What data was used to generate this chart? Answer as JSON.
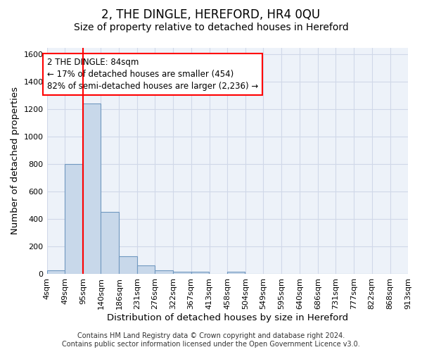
{
  "title": "2, THE DINGLE, HEREFORD, HR4 0QU",
  "subtitle": "Size of property relative to detached houses in Hereford",
  "xlabel": "Distribution of detached houses by size in Hereford",
  "ylabel": "Number of detached properties",
  "bar_left_edges": [
    4,
    49,
    95,
    140,
    186,
    231,
    276,
    322,
    367,
    413,
    458,
    504,
    549,
    595,
    640,
    686,
    731,
    777,
    822,
    868
  ],
  "bar_heights": [
    25,
    800,
    1240,
    450,
    130,
    60,
    25,
    15,
    15,
    0,
    15,
    0,
    0,
    0,
    0,
    0,
    0,
    0,
    0,
    0
  ],
  "bin_width": 45,
  "bar_color": "#c8d8ea",
  "bar_edge_color": "#7098c0",
  "red_line_x": 95,
  "ylim": [
    0,
    1650
  ],
  "yticks": [
    0,
    200,
    400,
    600,
    800,
    1000,
    1200,
    1400,
    1600
  ],
  "xtick_labels": [
    "4sqm",
    "49sqm",
    "95sqm",
    "140sqm",
    "186sqm",
    "231sqm",
    "276sqm",
    "322sqm",
    "367sqm",
    "413sqm",
    "458sqm",
    "504sqm",
    "549sqm",
    "595sqm",
    "640sqm",
    "686sqm",
    "731sqm",
    "777sqm",
    "822sqm",
    "868sqm",
    "913sqm"
  ],
  "xtick_positions": [
    4,
    49,
    95,
    140,
    186,
    231,
    276,
    322,
    367,
    413,
    458,
    504,
    549,
    595,
    640,
    686,
    731,
    777,
    822,
    868,
    913
  ],
  "annotation_text": "2 THE DINGLE: 84sqm\n← 17% of detached houses are smaller (454)\n82% of semi-detached houses are larger (2,236) →",
  "footer_line1": "Contains HM Land Registry data © Crown copyright and database right 2024.",
  "footer_line2": "Contains public sector information licensed under the Open Government Licence v3.0.",
  "bg_color": "#edf2f9",
  "grid_color": "#d0d8e8",
  "title_fontsize": 12,
  "subtitle_fontsize": 10,
  "axis_label_fontsize": 9.5,
  "tick_fontsize": 8,
  "footer_fontsize": 7
}
